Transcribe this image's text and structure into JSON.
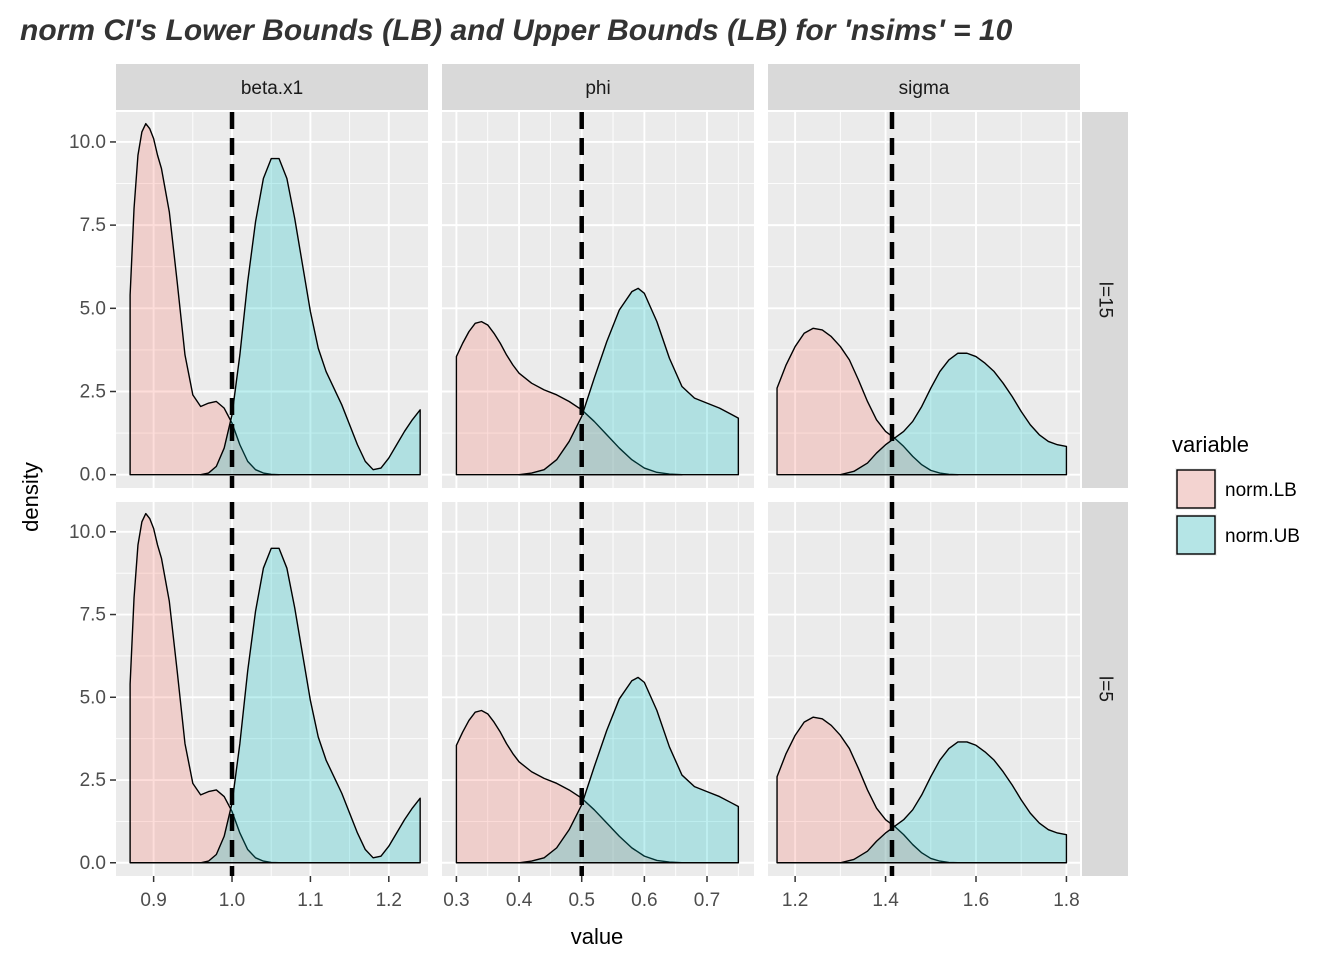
{
  "chart_data": {
    "type": "area",
    "title": "norm  CI's Lower Bounds (LB) and Upper Bounds (LB) for 'nsims' = 10",
    "xlabel": "value",
    "ylabel": "density",
    "grid": true,
    "legend": {
      "title": "variable",
      "position": "right",
      "entries": [
        {
          "name": "norm.LB",
          "color": "#F8766D"
        },
        {
          "name": "norm.UB",
          "color": "#00BFC4"
        }
      ]
    },
    "fill_alpha": 0.25,
    "facet_columns": [
      "beta.x1",
      "phi",
      "sigma"
    ],
    "facet_rows": [
      "l=15",
      "l=5"
    ],
    "ylim": [
      -0.4,
      10.9
    ],
    "y_ticks": [
      "0.0",
      "2.5",
      "5.0",
      "7.5",
      "10.0"
    ],
    "y_tick_values": [
      0,
      2.5,
      5,
      7.5,
      10
    ],
    "panels": [
      {
        "column": "beta.x1",
        "xlim": [
          0.852,
          1.25
        ],
        "x_ticks": [
          "0.9",
          "1.0",
          "1.1",
          "1.2"
        ],
        "x_tick_values": [
          0.9,
          1.0,
          1.1,
          1.2
        ],
        "reference_line": 1.0,
        "series": [
          {
            "name": "norm.LB",
            "x": [
              0.87,
              0.875,
              0.88,
              0.885,
              0.89,
              0.895,
              0.9,
              0.905,
              0.91,
              0.92,
              0.93,
              0.94,
              0.95,
              0.96,
              0.97,
              0.98,
              0.99,
              1.0,
              1.01,
              1.02,
              1.03,
              1.04,
              1.05,
              1.06
            ],
            "y": [
              5.4,
              8.0,
              9.6,
              10.3,
              10.55,
              10.4,
              10.1,
              9.6,
              9.2,
              7.9,
              5.8,
              3.6,
              2.4,
              2.05,
              2.15,
              2.2,
              2.0,
              1.55,
              0.9,
              0.4,
              0.15,
              0.05,
              0.01,
              0.0
            ]
          },
          {
            "name": "norm.UB",
            "x": [
              0.96,
              0.97,
              0.98,
              0.99,
              1.0,
              1.01,
              1.02,
              1.03,
              1.04,
              1.05,
              1.06,
              1.07,
              1.08,
              1.09,
              1.1,
              1.11,
              1.12,
              1.13,
              1.14,
              1.15,
              1.16,
              1.17,
              1.18,
              1.19,
              1.2,
              1.21,
              1.22,
              1.23,
              1.24
            ],
            "y": [
              0.0,
              0.05,
              0.25,
              0.8,
              1.8,
              3.6,
              5.8,
              7.6,
              8.9,
              9.5,
              9.5,
              8.9,
              7.7,
              6.3,
              4.9,
              3.8,
              3.1,
              2.6,
              2.1,
              1.5,
              0.9,
              0.4,
              0.15,
              0.2,
              0.5,
              0.9,
              1.3,
              1.65,
              1.95
            ]
          }
        ]
      },
      {
        "column": "phi",
        "xlim": [
          0.277,
          0.775
        ],
        "x_ticks": [
          "0.3",
          "0.4",
          "0.5",
          "0.6",
          "0.7"
        ],
        "x_tick_values": [
          0.3,
          0.4,
          0.5,
          0.6,
          0.7
        ],
        "reference_line": 0.5,
        "series": [
          {
            "name": "norm.LB",
            "x": [
              0.3,
              0.31,
              0.32,
              0.33,
              0.34,
              0.35,
              0.36,
              0.37,
              0.38,
              0.39,
              0.4,
              0.42,
              0.44,
              0.46,
              0.48,
              0.5,
              0.52,
              0.54,
              0.56,
              0.58,
              0.6,
              0.62,
              0.64,
              0.66
            ],
            "y": [
              3.55,
              3.95,
              4.3,
              4.55,
              4.6,
              4.5,
              4.25,
              3.95,
              3.6,
              3.3,
              3.05,
              2.75,
              2.55,
              2.4,
              2.2,
              1.95,
              1.6,
              1.2,
              0.8,
              0.45,
              0.2,
              0.07,
              0.02,
              0.0
            ]
          },
          {
            "name": "norm.UB",
            "x": [
              0.4,
              0.42,
              0.44,
              0.46,
              0.48,
              0.5,
              0.52,
              0.54,
              0.56,
              0.58,
              0.59,
              0.6,
              0.62,
              0.64,
              0.66,
              0.68,
              0.7,
              0.72,
              0.74,
              0.75
            ],
            "y": [
              0.0,
              0.05,
              0.15,
              0.45,
              1.0,
              1.75,
              2.9,
              4.0,
              4.95,
              5.5,
              5.6,
              5.45,
              4.6,
              3.5,
              2.65,
              2.3,
              2.15,
              2.0,
              1.8,
              1.7
            ]
          }
        ]
      },
      {
        "column": "sigma",
        "xlim": [
          1.14,
          1.83
        ],
        "x_ticks": [
          "1.2",
          "1.4",
          "1.6",
          "1.8"
        ],
        "x_tick_values": [
          1.2,
          1.4,
          1.6,
          1.8
        ],
        "reference_line": 1.4142,
        "series": [
          {
            "name": "norm.LB",
            "x": [
              1.16,
              1.18,
              1.2,
              1.22,
              1.24,
              1.26,
              1.28,
              1.3,
              1.32,
              1.34,
              1.36,
              1.38,
              1.4,
              1.42,
              1.44,
              1.46,
              1.48,
              1.5,
              1.52,
              1.54,
              1.56
            ],
            "y": [
              2.6,
              3.3,
              3.85,
              4.25,
              4.4,
              4.35,
              4.15,
              3.85,
              3.45,
              2.85,
              2.2,
              1.65,
              1.3,
              1.1,
              0.85,
              0.55,
              0.3,
              0.13,
              0.05,
              0.01,
              0.0
            ]
          },
          {
            "name": "norm.UB",
            "x": [
              1.3,
              1.33,
              1.36,
              1.38,
              1.4,
              1.42,
              1.44,
              1.46,
              1.48,
              1.5,
              1.52,
              1.54,
              1.56,
              1.58,
              1.6,
              1.62,
              1.64,
              1.66,
              1.68,
              1.7,
              1.72,
              1.74,
              1.76,
              1.78,
              1.8
            ],
            "y": [
              0.0,
              0.1,
              0.35,
              0.65,
              0.9,
              1.1,
              1.3,
              1.6,
              2.05,
              2.6,
              3.1,
              3.45,
              3.65,
              3.65,
              3.55,
              3.35,
              3.1,
              2.75,
              2.35,
              1.9,
              1.5,
              1.2,
              1.0,
              0.9,
              0.85
            ]
          }
        ]
      }
    ]
  }
}
